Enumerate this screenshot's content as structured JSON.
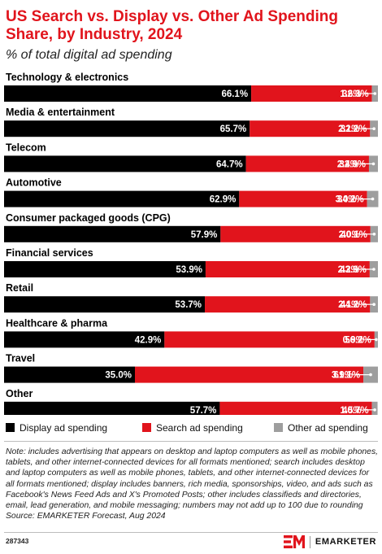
{
  "header": {
    "title": "US Search vs. Display vs. Other Ad Spending Share, by Industry, 2024",
    "subtitle": "% of total digital ad spending"
  },
  "chart_data": {
    "type": "bar",
    "stacked": true,
    "orientation": "horizontal",
    "unit": "%",
    "xlim": [
      0,
      100
    ],
    "grid": false,
    "legend_position": "bottom",
    "categories": [
      "Technology & electronics",
      "Media & entertainment",
      "Telecom",
      "Automotive",
      "Consumer packaged goods (CPG)",
      "Financial services",
      "Retail",
      "Healthcare & pharma",
      "Travel",
      "Other"
    ],
    "series": [
      {
        "name": "Display ad spending",
        "color": "#000000",
        "label_color": "#ffffff",
        "values": [
          66.1,
          65.7,
          64.7,
          62.9,
          57.9,
          53.9,
          53.7,
          42.9,
          35.0,
          57.7
        ],
        "labels": [
          "66.1%",
          "65.7%",
          "64.7%",
          "62.9%",
          "57.9%",
          "53.9%",
          "53.7%",
          "42.9%",
          "35.0%",
          "57.7%"
        ]
      },
      {
        "name": "Search ad spending",
        "color": "#e1141c",
        "label_color": "#ffffff",
        "values": [
          32.3,
          32.2,
          32.9,
          34.2,
          40.1,
          43.9,
          44.2,
          56.2,
          61.1,
          40.7
        ],
        "labels": [
          "32.3%",
          "32.2%",
          "32.9%",
          "34.2%",
          "40.1%",
          "43.9%",
          "44.2%",
          "56.2%",
          "61.1%",
          "40.7%"
        ]
      },
      {
        "name": "Other ad spending",
        "color": "#9e9e9e",
        "label_color": "#000000",
        "values": [
          1.6,
          2.1,
          2.4,
          3.0,
          2.0,
          2.2,
          2.1,
          0.9,
          3.9,
          1.5
        ],
        "labels": [
          "1.6%",
          "2.1%",
          "2.4%",
          "3.0%",
          "2.0%",
          "2.2%",
          "2.1%",
          "0.9%",
          "3.9%",
          "1.5%"
        ]
      }
    ]
  },
  "footer": {
    "note": "Note: includes advertising that appears on desktop and laptop computers as well as mobile phones, tablets, and other internet-connected devices for all formats mentioned; search includes desktop and laptop computers as well as mobile phones, tablets, and other internet-connected devices for all formats mentioned; display includes banners, rich media, sponsorships, video, and ads such as Facebook's News Feed Ads and X's Promoted Posts; other includes classifieds and directories, email, lead generation, and mobile messaging; numbers may not add up to 100 due to rounding",
    "source": "Source: EMARKETER Forecast, Aug 2024",
    "chart_id": "287343",
    "brand": "EMARKETER"
  }
}
